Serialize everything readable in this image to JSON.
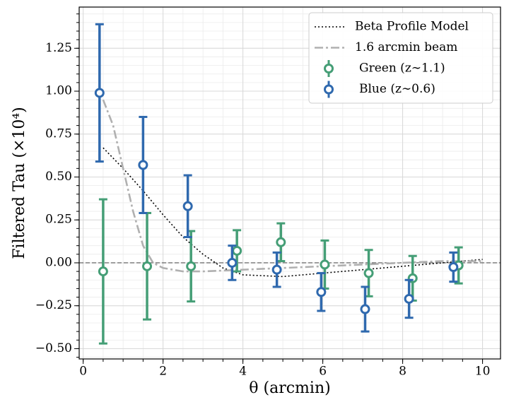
{
  "chart_data": {
    "type": "errorbar",
    "xlabel": "θ (arcmin)",
    "ylabel": "Filtered Tau (×10⁴)",
    "xlim": [
      -0.1,
      10.45
    ],
    "ylim": [
      -0.56,
      1.49
    ],
    "xticks": [
      0,
      2,
      4,
      6,
      8,
      10
    ],
    "yticks": [
      {
        "value": -0.5,
        "label": "−0.50"
      },
      {
        "value": -0.25,
        "label": "−0.25"
      },
      {
        "value": 0,
        "label": "0.00"
      },
      0.25,
      {
        "value": 0.5,
        "label": "0.50"
      },
      0.75,
      {
        "value": 1,
        "label": "1.00"
      },
      1.25
    ],
    "xminor_step": 0.5,
    "yminor_step": 0.05,
    "grid": true,
    "hline": 0,
    "legend": "upper right",
    "lines": [
      {
        "name": "Beta Profile Model",
        "color": "#000000",
        "style": "dotted",
        "x": [
          0.5,
          1,
          1.5,
          2,
          2.5,
          3,
          3.5,
          4,
          5,
          6,
          7,
          8,
          9,
          10
        ],
        "values": [
          0.67,
          0.55,
          0.42,
          0.28,
          0.15,
          0.05,
          -0.03,
          -0.07,
          -0.08,
          -0.06,
          -0.04,
          -0.02,
          0.0,
          0.02
        ]
      },
      {
        "name": "1.6 arcmin beam",
        "color": "#b0b0b0",
        "style": "dashdot",
        "x": [
          0.5,
          0.75,
          1,
          1.25,
          1.5,
          1.75,
          2,
          2.5,
          3,
          4,
          5,
          6,
          7,
          8,
          9,
          10
        ],
        "values": [
          0.95,
          0.8,
          0.55,
          0.3,
          0.1,
          0.0,
          -0.03,
          -0.05,
          -0.05,
          -0.04,
          -0.03,
          -0.02,
          -0.01,
          0.0,
          0.01,
          0.01
        ]
      }
    ],
    "series": [
      {
        "name": "Green (z∼1.1)",
        "color": "#459e76",
        "x": [
          0.5,
          1.6,
          2.7,
          3.85,
          4.95,
          6.05,
          7.15,
          8.25,
          9.4
        ],
        "values": [
          -0.05,
          -0.02,
          -0.02,
          0.07,
          0.12,
          -0.01,
          -0.06,
          -0.09,
          -0.015
        ],
        "errors": [
          0.42,
          0.31,
          0.205,
          0.12,
          0.11,
          0.14,
          0.135,
          0.13,
          0.105
        ]
      },
      {
        "name": "Blue (z∼0.6)",
        "color": "#2f69ae",
        "x": [
          0.41,
          1.5,
          2.62,
          3.73,
          4.85,
          5.96,
          7.06,
          8.16,
          9.27
        ],
        "values": [
          0.99,
          0.57,
          0.33,
          0.0,
          -0.04,
          -0.17,
          -0.27,
          -0.21,
          -0.025
        ],
        "errors": [
          0.4,
          0.28,
          0.18,
          0.1,
          0.1,
          0.11,
          0.13,
          0.11,
          0.085
        ]
      }
    ]
  }
}
